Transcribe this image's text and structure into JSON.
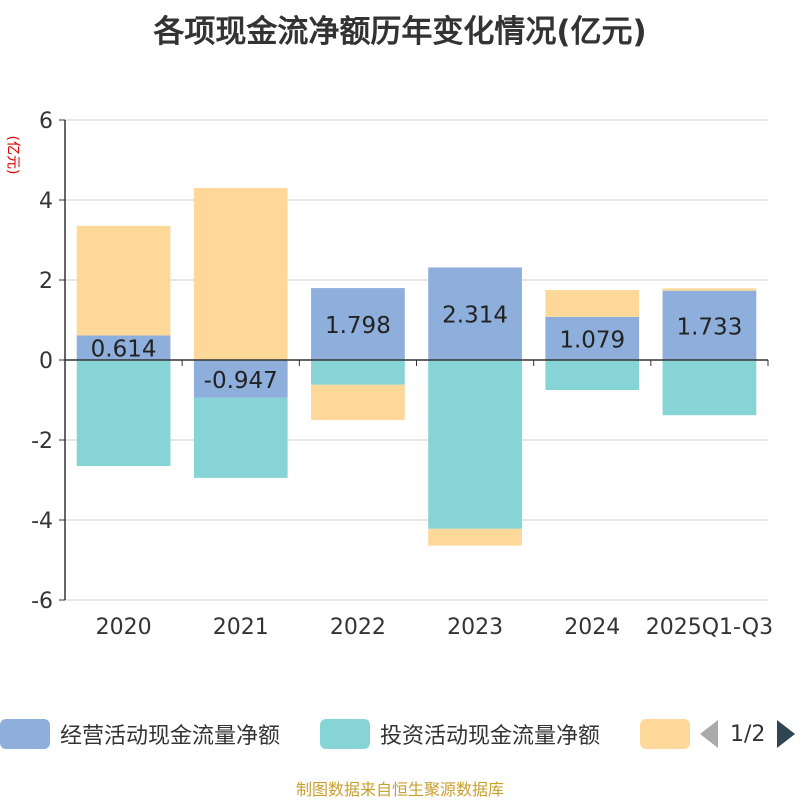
{
  "chart_data": {
    "type": "bar",
    "stacked": true,
    "title": "各项现金流净额历年变化情况(亿元)",
    "ylabel": "(亿元)",
    "ylim": [
      -6,
      6
    ],
    "yticks": [
      6,
      4,
      2,
      0,
      -2,
      -4,
      -6
    ],
    "categories": [
      "2020",
      "2021",
      "2022",
      "2023",
      "2024",
      "2025Q1-Q3"
    ],
    "series": [
      {
        "name": "经营活动现金流量净额",
        "color": "#8eaedb",
        "values": [
          0.614,
          -0.947,
          1.798,
          2.314,
          1.079,
          1.733
        ],
        "labels": [
          "0.614",
          "-0.947",
          "1.798",
          "2.314",
          "1.079",
          "1.733"
        ]
      },
      {
        "name": "投资活动现金流量净额",
        "color": "#86d4d6",
        "values": [
          -2.65,
          -2.0,
          -0.62,
          -4.22,
          -0.75,
          -1.38
        ]
      },
      {
        "name": "",
        "color": "#fdd899",
        "values": [
          2.74,
          4.3,
          -0.88,
          -0.42,
          0.67,
          0.06
        ]
      }
    ],
    "grid": true,
    "legend_position": "bottom"
  },
  "pager": {
    "text": "1/2"
  },
  "source": "制图数据来自恒生聚源数据库"
}
